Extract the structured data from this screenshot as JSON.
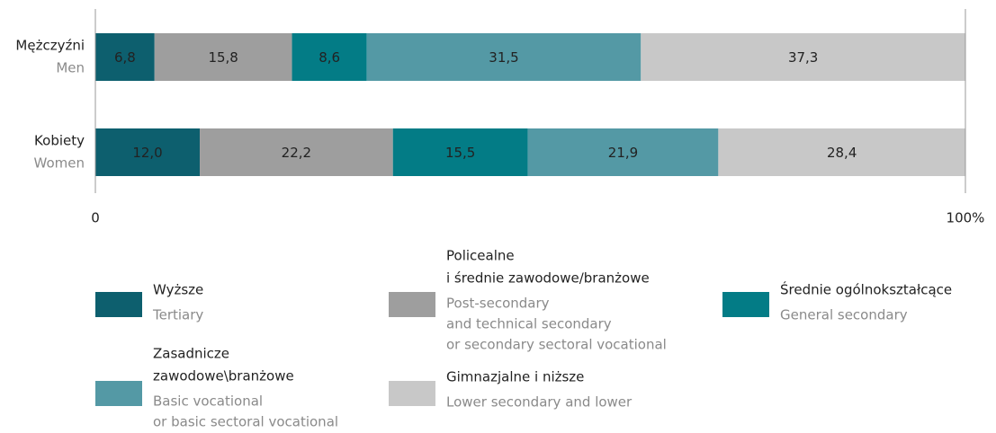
{
  "chart_data": {
    "type": "stacked-bar-horizontal",
    "categories": [
      "Mężczyźni",
      "Kobiety"
    ],
    "categories_en": [
      "Men",
      "Women"
    ],
    "series": [
      {
        "name": [
          "Wyższe"
        ],
        "name_en": [
          "Tertiary"
        ],
        "color": "#0d5f6e",
        "values": [
          6.8,
          12.0
        ],
        "value_labels": [
          "6,8",
          "12,0"
        ]
      },
      {
        "name": [
          "Policealne",
          "i średnie zawodowe/branżowe"
        ],
        "name_en": [
          "Post-secondary",
          "and technical secondary",
          "or secondary sectoral vocational"
        ],
        "color": "#9e9e9e",
        "values": [
          15.8,
          22.2
        ],
        "value_labels": [
          "15,8",
          "22,2"
        ]
      },
      {
        "name": [
          "Średnie ogólnokształcące"
        ],
        "name_en": [
          "General secondary"
        ],
        "color": "#037c86",
        "values": [
          8.6,
          15.5
        ],
        "value_labels": [
          "8,6",
          "15,5"
        ]
      },
      {
        "name": [
          "Zasadnicze",
          "zawodowe\\branżowe"
        ],
        "name_en": [
          "Basic vocational",
          "or basic sectoral vocational"
        ],
        "color": "#5499a5",
        "values": [
          31.5,
          21.9
        ],
        "value_labels": [
          "31,5",
          "21,9"
        ]
      },
      {
        "name": [
          "Gimnazjalne i niższe"
        ],
        "name_en": [
          "Lower secondary and lower"
        ],
        "color": "#c8c8c8",
        "values": [
          37.3,
          28.4
        ],
        "value_labels": [
          "37,3",
          "28,4"
        ]
      }
    ],
    "xlim": [
      0,
      100
    ],
    "xticks": [
      0,
      {
        "value": 100,
        "label": "100%"
      }
    ]
  }
}
